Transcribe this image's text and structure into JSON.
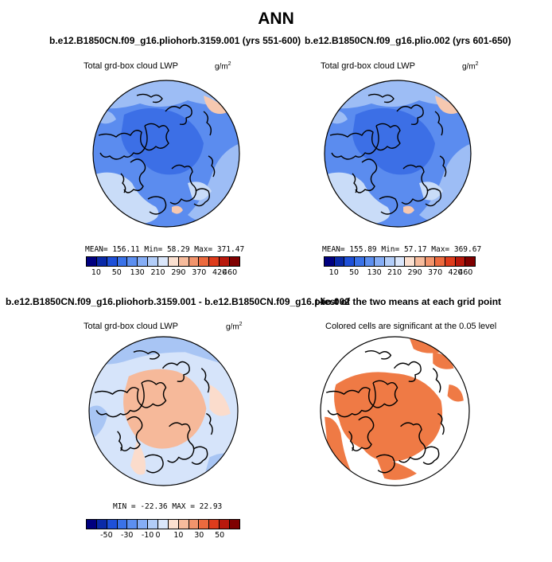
{
  "title": "ANN",
  "panels": {
    "top_left": {
      "case": "b.e12.B1850CN.f09_g16.pliohorb.3159.001 (yrs 551-600)",
      "variable": "Total grd-box cloud LWP",
      "units": "g/m",
      "units_exp": "2",
      "stats": "MEAN= 156.11   Min=  58.29   Max= 371.47"
    },
    "top_right": {
      "case": "b.e12.B1850CN.f09_g16.plio.002 (yrs 601-650)",
      "variable": "Total grd-box cloud LWP",
      "units": "g/m",
      "units_exp": "2",
      "stats": "MEAN= 155.89   Min=  57.17   Max= 369.67"
    },
    "bottom_left": {
      "case": "b.e12.B1850CN.f09_g16.pliohorb.3159.001 - b.e12.B1850CN.f09_g16.plio.002",
      "variable": "Total grd-box cloud LWP",
      "units": "g/m",
      "units_exp": "2",
      "stats": "MIN = -22.36  MAX =  22.93"
    },
    "bottom_right": {
      "case": "t-test of the two means at each grid point",
      "note": "Colored cells are significant at the 0.05 level"
    }
  },
  "colorbar_abs": {
    "labels": [
      "10",
      "50",
      "130",
      "210",
      "290",
      "370",
      "420",
      "460"
    ],
    "colors": [
      "#00007f",
      "#0a2aa8",
      "#1e50d8",
      "#3a72e8",
      "#5c8ff0",
      "#85adf5",
      "#b2cdf8",
      "#dbe7fb",
      "#fbe0d0",
      "#f6bb9c",
      "#f2946c",
      "#ec6a3e",
      "#de3c1c",
      "#b8180c",
      "#7f0000"
    ]
  },
  "colorbar_diff": {
    "labels": [
      "-50",
      "-30",
      "-10",
      "0",
      "10",
      "30",
      "50"
    ],
    "colors": [
      "#00007f",
      "#0a2aa8",
      "#1e50d8",
      "#3a72e8",
      "#5c8ff0",
      "#85adf5",
      "#b2cdf8",
      "#dbe7fb",
      "#fbe0d0",
      "#f6bb9c",
      "#f2946c",
      "#ec6a3e",
      "#de3c1c",
      "#b8180c",
      "#7f0000"
    ]
  },
  "map_colors": {
    "abs_dark": "#3c6fe6",
    "abs_mid": "#5b8cef",
    "abs_light": "#9dbdf5",
    "abs_pale": "#c9dcf8",
    "abs_warm": "#f6c8b0",
    "diff_warm": "#f6b99a",
    "diff_pale_warm": "#fbdccc",
    "diff_pale_cool": "#d6e4fa",
    "diff_cool": "#a8c5f4",
    "sig": "#ef7a45",
    "coast": "#000000"
  }
}
